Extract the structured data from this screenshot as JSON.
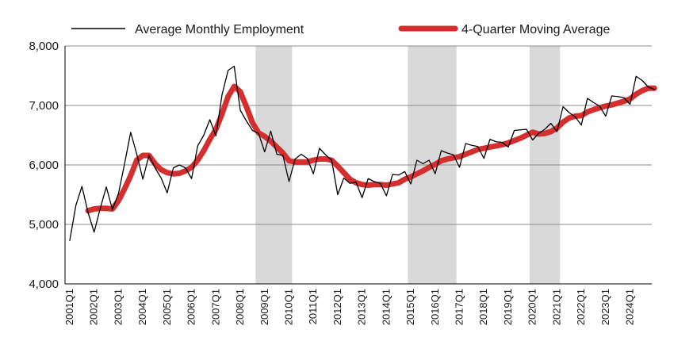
{
  "chart_data": {
    "type": "line",
    "title": "",
    "xlabel": "",
    "ylabel": "",
    "ylim": [
      4000,
      8000
    ],
    "y_ticks": [
      "4,000",
      "5,000",
      "6,000",
      "7,000",
      "8,000"
    ],
    "x_tick_labels": [
      "2001Q1",
      "2002Q1",
      "2003Q1",
      "2004Q1",
      "2005Q1",
      "2006Q1",
      "2007Q1",
      "2008Q1",
      "2009Q1",
      "2010Q1",
      "2011Q1",
      "2012Q1",
      "2013Q1",
      "2014Q1",
      "2015Q1",
      "2016Q1",
      "2017Q1",
      "2018Q1",
      "2019Q1",
      "2020Q1",
      "2021Q1",
      "2022Q1",
      "2023Q1",
      "2024Q1"
    ],
    "grid": "horizontal",
    "legend_position": "top",
    "shaded_periods": [
      {
        "start": "2008Q4",
        "end": "2010Q1"
      },
      {
        "start": "2015Q1",
        "end": "2016Q4"
      },
      {
        "start": "2020Q1",
        "end": "2021Q1"
      }
    ],
    "series": [
      {
        "name": "Average Monthly Employment",
        "color": "#000000",
        "values": [
          4730,
          5320,
          5640,
          5200,
          4870,
          5270,
          5630,
          5250,
          5520,
          6020,
          6550,
          6180,
          5760,
          6160,
          5950,
          5780,
          5530,
          5950,
          6000,
          5950,
          5770,
          6320,
          6500,
          6760,
          6490,
          7180,
          7590,
          7660,
          6920,
          6740,
          6580,
          6530,
          6220,
          6570,
          6180,
          6160,
          5720,
          6100,
          6180,
          6110,
          5850,
          6280,
          6170,
          6080,
          5500,
          5780,
          5690,
          5710,
          5450,
          5770,
          5720,
          5690,
          5480,
          5840,
          5830,
          5890,
          5680,
          6080,
          6020,
          6080,
          5850,
          6240,
          6200,
          6170,
          5960,
          6360,
          6330,
          6310,
          6110,
          6430,
          6390,
          6380,
          6300,
          6580,
          6590,
          6600,
          6420,
          6530,
          6600,
          6700,
          6560,
          6980,
          6880,
          6810,
          6670,
          7120,
          7050,
          6990,
          6820,
          7160,
          7150,
          7130,
          7020,
          7490,
          7420,
          7310,
          7270
        ]
      },
      {
        "name": "4-Quarter Moving Average",
        "color": "#d42e2e",
        "values": [
          null,
          null,
          null,
          5230,
          5260,
          5270,
          5270,
          5260,
          5400,
          5600,
          5820,
          6080,
          6160,
          6160,
          6020,
          5920,
          5870,
          5850,
          5860,
          5900,
          5960,
          6080,
          6240,
          6430,
          6600,
          6860,
          7150,
          7320,
          7230,
          6980,
          6710,
          6540,
          6480,
          6400,
          6300,
          6200,
          6070,
          6050,
          6050,
          6050,
          6080,
          6100,
          6100,
          6080,
          5980,
          5870,
          5760,
          5700,
          5670,
          5660,
          5670,
          5670,
          5660,
          5680,
          5700,
          5760,
          5800,
          5850,
          5900,
          5960,
          6010,
          6070,
          6100,
          6120,
          6140,
          6180,
          6220,
          6260,
          6280,
          6300,
          6320,
          6340,
          6370,
          6410,
          6450,
          6500,
          6550,
          6520,
          6530,
          6560,
          6620,
          6720,
          6790,
          6820,
          6830,
          6890,
          6930,
          6960,
          6990,
          7010,
          7040,
          7070,
          7110,
          7190,
          7250,
          7290,
          7290
        ]
      }
    ]
  }
}
